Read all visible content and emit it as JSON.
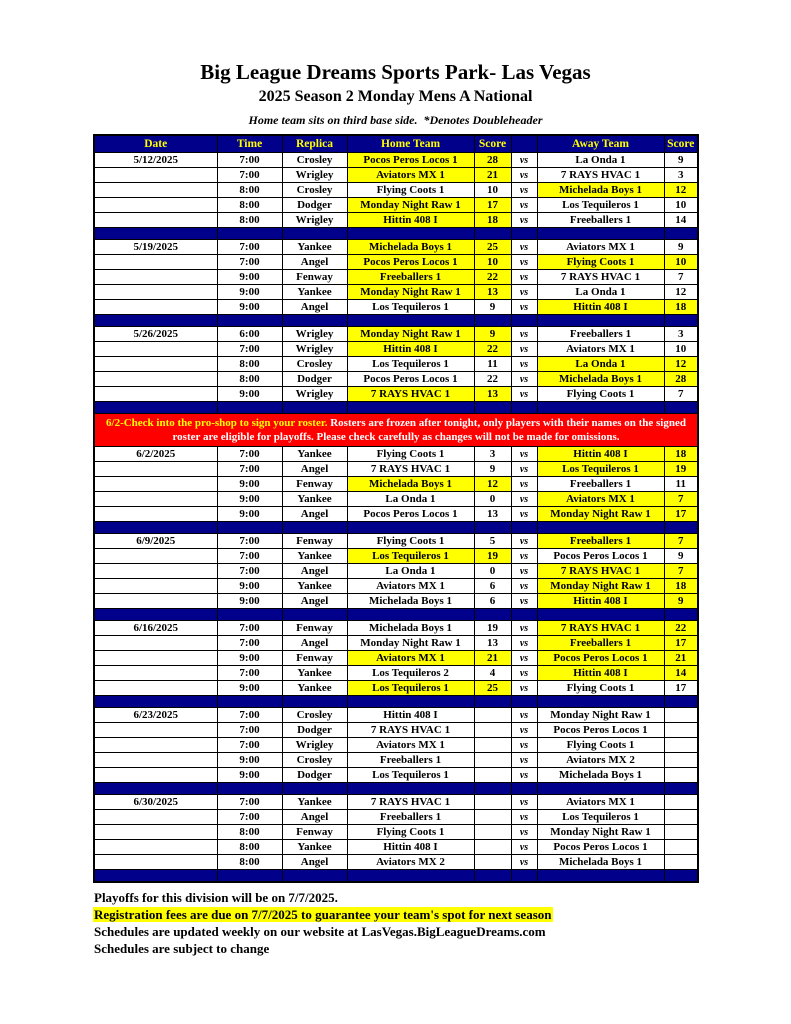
{
  "colors": {
    "navy": "#00008B",
    "yellow": "#FFFF00",
    "red": "#FF0000"
  },
  "page": {
    "title": "Big League Dreams Sports Park- Las Vegas",
    "subtitle": "2025 Season 2 Monday Mens A National",
    "tagline": "Home team sits on third base side.  *Denotes Doubleheader"
  },
  "table": {
    "headers": [
      "Date",
      "Time",
      "Replica",
      "Home Team",
      "Score",
      "",
      "Away Team",
      "Score"
    ],
    "vs_label": "vs",
    "blocks": [
      {
        "type": "games",
        "date": "5/12/2025",
        "games": [
          {
            "time": "7:00",
            "replica": "Crosley",
            "home": "Pocos Peros Locos 1",
            "home_score": "28",
            "home_hl": true,
            "away": "La Onda 1",
            "away_score": "9",
            "away_hl": false
          },
          {
            "time": "7:00",
            "replica": "Wrigley",
            "home": "Aviators MX 1",
            "home_score": "21",
            "home_hl": true,
            "away": "7 RAYS HVAC 1",
            "away_score": "3",
            "away_hl": false
          },
          {
            "time": "8:00",
            "replica": "Crosley",
            "home": "Flying Coots 1",
            "home_score": "10",
            "home_hl": false,
            "away": "Michelada Boys 1",
            "away_score": "12",
            "away_hl": true
          },
          {
            "time": "8:00",
            "replica": "Dodger",
            "home": "Monday Night Raw 1",
            "home_score": "17",
            "home_hl": true,
            "away": "Los Tequileros 1",
            "away_score": "10",
            "away_hl": false
          },
          {
            "time": "8:00",
            "replica": "Wrigley",
            "home": "Hittin 408 I",
            "home_score": "18",
            "home_hl": true,
            "away": "Freeballers 1",
            "away_score": "14",
            "away_hl": false
          }
        ]
      },
      {
        "type": "games",
        "date": "5/19/2025",
        "games": [
          {
            "time": "7:00",
            "replica": "Yankee",
            "home": "Michelada Boys 1",
            "home_score": "25",
            "home_hl": true,
            "away": "Aviators MX 1",
            "away_score": "9",
            "away_hl": false
          },
          {
            "time": "7:00",
            "replica": "Angel",
            "home": "Pocos Peros Locos 1",
            "home_score": "10",
            "home_hl": true,
            "away": "Flying Coots 1",
            "away_score": "10",
            "away_hl": true
          },
          {
            "time": "9:00",
            "replica": "Fenway",
            "home": "Freeballers 1",
            "home_score": "22",
            "home_hl": true,
            "away": "7 RAYS HVAC 1",
            "away_score": "7",
            "away_hl": false
          },
          {
            "time": "9:00",
            "replica": "Yankee",
            "home": "Monday Night Raw 1",
            "home_score": "13",
            "home_hl": true,
            "away": "La Onda 1",
            "away_score": "12",
            "away_hl": false
          },
          {
            "time": "9:00",
            "replica": "Angel",
            "home": "Los Tequileros 1",
            "home_score": "9",
            "home_hl": false,
            "away": "Hittin 408 I",
            "away_score": "18",
            "away_hl": true
          }
        ]
      },
      {
        "type": "games",
        "date": "5/26/2025",
        "games": [
          {
            "time": "6:00",
            "replica": "Wrigley",
            "home": "Monday Night Raw 1",
            "home_score": "9",
            "home_hl": true,
            "away": "Freeballers 1",
            "away_score": "3",
            "away_hl": false
          },
          {
            "time": "7:00",
            "replica": "Wrigley",
            "home": "Hittin 408 I",
            "home_score": "22",
            "home_hl": true,
            "away": "Aviators MX 1",
            "away_score": "10",
            "away_hl": false
          },
          {
            "time": "8:00",
            "replica": "Crosley",
            "home": "Los Tequileros 1",
            "home_score": "11",
            "home_hl": false,
            "away": "La Onda 1",
            "away_score": "12",
            "away_hl": true
          },
          {
            "time": "8:00",
            "replica": "Dodger",
            "home": "Pocos Peros Locos 1",
            "home_score": "22",
            "home_hl": false,
            "away": "Michelada Boys 1",
            "away_score": "28",
            "away_hl": true
          },
          {
            "time": "9:00",
            "replica": "Wrigley",
            "home": "7 RAYS HVAC 1",
            "home_score": "13",
            "home_hl": true,
            "away": "Flying Coots 1",
            "away_score": "7",
            "away_hl": false
          }
        ]
      },
      {
        "type": "notice",
        "highlight_text": "6/2-Check into the pro-shop to sign your roster.",
        "body_text": " Rosters are frozen after tonight, only players with their names on the signed roster are eligible for playoffs. Please check carefully as changes will not be made for omissions."
      },
      {
        "type": "games",
        "date": "6/2/2025",
        "games": [
          {
            "time": "7:00",
            "replica": "Yankee",
            "home": "Flying Coots 1",
            "home_score": "3",
            "home_hl": false,
            "away": "Hittin 408 I",
            "away_score": "18",
            "away_hl": true
          },
          {
            "time": "7:00",
            "replica": "Angel",
            "home": "7 RAYS HVAC 1",
            "home_score": "9",
            "home_hl": false,
            "away": "Los Tequileros 1",
            "away_score": "19",
            "away_hl": true
          },
          {
            "time": "9:00",
            "replica": "Fenway",
            "home": "Michelada Boys 1",
            "home_score": "12",
            "home_hl": true,
            "away": "Freeballers 1",
            "away_score": "11",
            "away_hl": false
          },
          {
            "time": "9:00",
            "replica": "Yankee",
            "home": "La Onda 1",
            "home_score": "0",
            "home_hl": false,
            "away": "Aviators MX 1",
            "away_score": "7",
            "away_hl": true
          },
          {
            "time": "9:00",
            "replica": "Angel",
            "home": "Pocos Peros Locos 1",
            "home_score": "13",
            "home_hl": false,
            "away": "Monday Night Raw 1",
            "away_score": "17",
            "away_hl": true
          }
        ]
      },
      {
        "type": "games",
        "date": "6/9/2025",
        "games": [
          {
            "time": "7:00",
            "replica": "Fenway",
            "home": "Flying Coots 1",
            "home_score": "5",
            "home_hl": false,
            "away": "Freeballers 1",
            "away_score": "7",
            "away_hl": true
          },
          {
            "time": "7:00",
            "replica": "Yankee",
            "home": "Los Tequileros 1",
            "home_score": "19",
            "home_hl": true,
            "away": "Pocos Peros Locos 1",
            "away_score": "9",
            "away_hl": false
          },
          {
            "time": "7:00",
            "replica": "Angel",
            "home": "La Onda 1",
            "home_score": "0",
            "home_hl": false,
            "away": "7 RAYS HVAC 1",
            "away_score": "7",
            "away_hl": true
          },
          {
            "time": "9:00",
            "replica": "Yankee",
            "home": "Aviators MX 1",
            "home_score": "6",
            "home_hl": false,
            "away": "Monday Night Raw 1",
            "away_score": "18",
            "away_hl": true
          },
          {
            "time": "9:00",
            "replica": "Angel",
            "home": "Michelada Boys 1",
            "home_score": "6",
            "home_hl": false,
            "away": "Hittin 408 I",
            "away_score": "9",
            "away_hl": true
          }
        ]
      },
      {
        "type": "games",
        "date": "6/16/2025",
        "games": [
          {
            "time": "7:00",
            "replica": "Fenway",
            "home": "Michelada Boys 1",
            "home_score": "19",
            "home_hl": false,
            "away": "7 RAYS HVAC 1",
            "away_score": "22",
            "away_hl": true
          },
          {
            "time": "7:00",
            "replica": "Angel",
            "home": "Monday Night Raw 1",
            "home_score": "13",
            "home_hl": false,
            "away": "Freeballers 1",
            "away_score": "17",
            "away_hl": true
          },
          {
            "time": "9:00",
            "replica": "Fenway",
            "home": "Aviators MX 1",
            "home_score": "21",
            "home_hl": true,
            "away": "Pocos Peros Locos 1",
            "away_score": "21",
            "away_hl": true
          },
          {
            "time": "7:00",
            "replica": "Yankee",
            "home": "Los Tequileros 2",
            "home_score": "4",
            "home_hl": false,
            "away": "Hittin 408 I",
            "away_score": "14",
            "away_hl": true
          },
          {
            "time": "9:00",
            "replica": "Yankee",
            "home": "Los Tequileros 1",
            "home_score": "25",
            "home_hl": true,
            "away": "Flying Coots 1",
            "away_score": "17",
            "away_hl": false
          }
        ]
      },
      {
        "type": "games",
        "date": "6/23/2025",
        "games": [
          {
            "time": "7:00",
            "replica": "Crosley",
            "home": "Hittin 408 I",
            "home_score": "",
            "home_hl": false,
            "away": "Monday Night Raw 1",
            "away_score": "",
            "away_hl": false
          },
          {
            "time": "7:00",
            "replica": "Dodger",
            "home": "7 RAYS HVAC 1",
            "home_score": "",
            "home_hl": false,
            "away": "Pocos Peros Locos 1",
            "away_score": "",
            "away_hl": false
          },
          {
            "time": "7:00",
            "replica": "Wrigley",
            "home": "Aviators MX 1",
            "home_score": "",
            "home_hl": false,
            "away": "Flying Coots 1",
            "away_score": "",
            "away_hl": false
          },
          {
            "time": "9:00",
            "replica": "Crosley",
            "home": "Freeballers 1",
            "home_score": "",
            "home_hl": false,
            "away": "Aviators MX 2",
            "away_score": "",
            "away_hl": false
          },
          {
            "time": "9:00",
            "replica": "Dodger",
            "home": "Los Tequileros 1",
            "home_score": "",
            "home_hl": false,
            "away": "Michelada Boys 1",
            "away_score": "",
            "away_hl": false
          }
        ]
      },
      {
        "type": "games",
        "date": "6/30/2025",
        "games": [
          {
            "time": "7:00",
            "replica": "Yankee",
            "home": "7 RAYS HVAC 1",
            "home_score": "",
            "home_hl": false,
            "away": "Aviators MX 1",
            "away_score": "",
            "away_hl": false
          },
          {
            "time": "7:00",
            "replica": "Angel",
            "home": "Freeballers 1",
            "home_score": "",
            "home_hl": false,
            "away": "Los Tequileros 1",
            "away_score": "",
            "away_hl": false
          },
          {
            "time": "8:00",
            "replica": "Fenway",
            "home": "Flying Coots 1",
            "home_score": "",
            "home_hl": false,
            "away": "Monday Night Raw 1",
            "away_score": "",
            "away_hl": false
          },
          {
            "time": "8:00",
            "replica": "Yankee",
            "home": "Hittin 408 I",
            "home_score": "",
            "home_hl": false,
            "away": "Pocos Peros Locos 1",
            "away_score": "",
            "away_hl": false
          },
          {
            "time": "8:00",
            "replica": "Angel",
            "home": "Aviators MX 2",
            "home_score": "",
            "home_hl": false,
            "away": "Michelada Boys 1",
            "away_score": "",
            "away_hl": false
          }
        ]
      }
    ]
  },
  "footer": {
    "lines": [
      {
        "text": "Playoffs for this division will be on 7/7/2025.",
        "highlight": false,
        "name": "footer-line-playoffs"
      },
      {
        "text": "Registration fees are due on 7/7/2025 to guarantee your team's spot for next season",
        "highlight": true,
        "name": "footer-line-registration"
      },
      {
        "text": "Schedules are updated weekly on our website at LasVegas.BigLeagueDreams.com",
        "highlight": false,
        "name": "footer-line-website"
      },
      {
        "text": "Schedules are subject to change",
        "highlight": false,
        "name": "footer-line-subject-to-change"
      }
    ]
  }
}
